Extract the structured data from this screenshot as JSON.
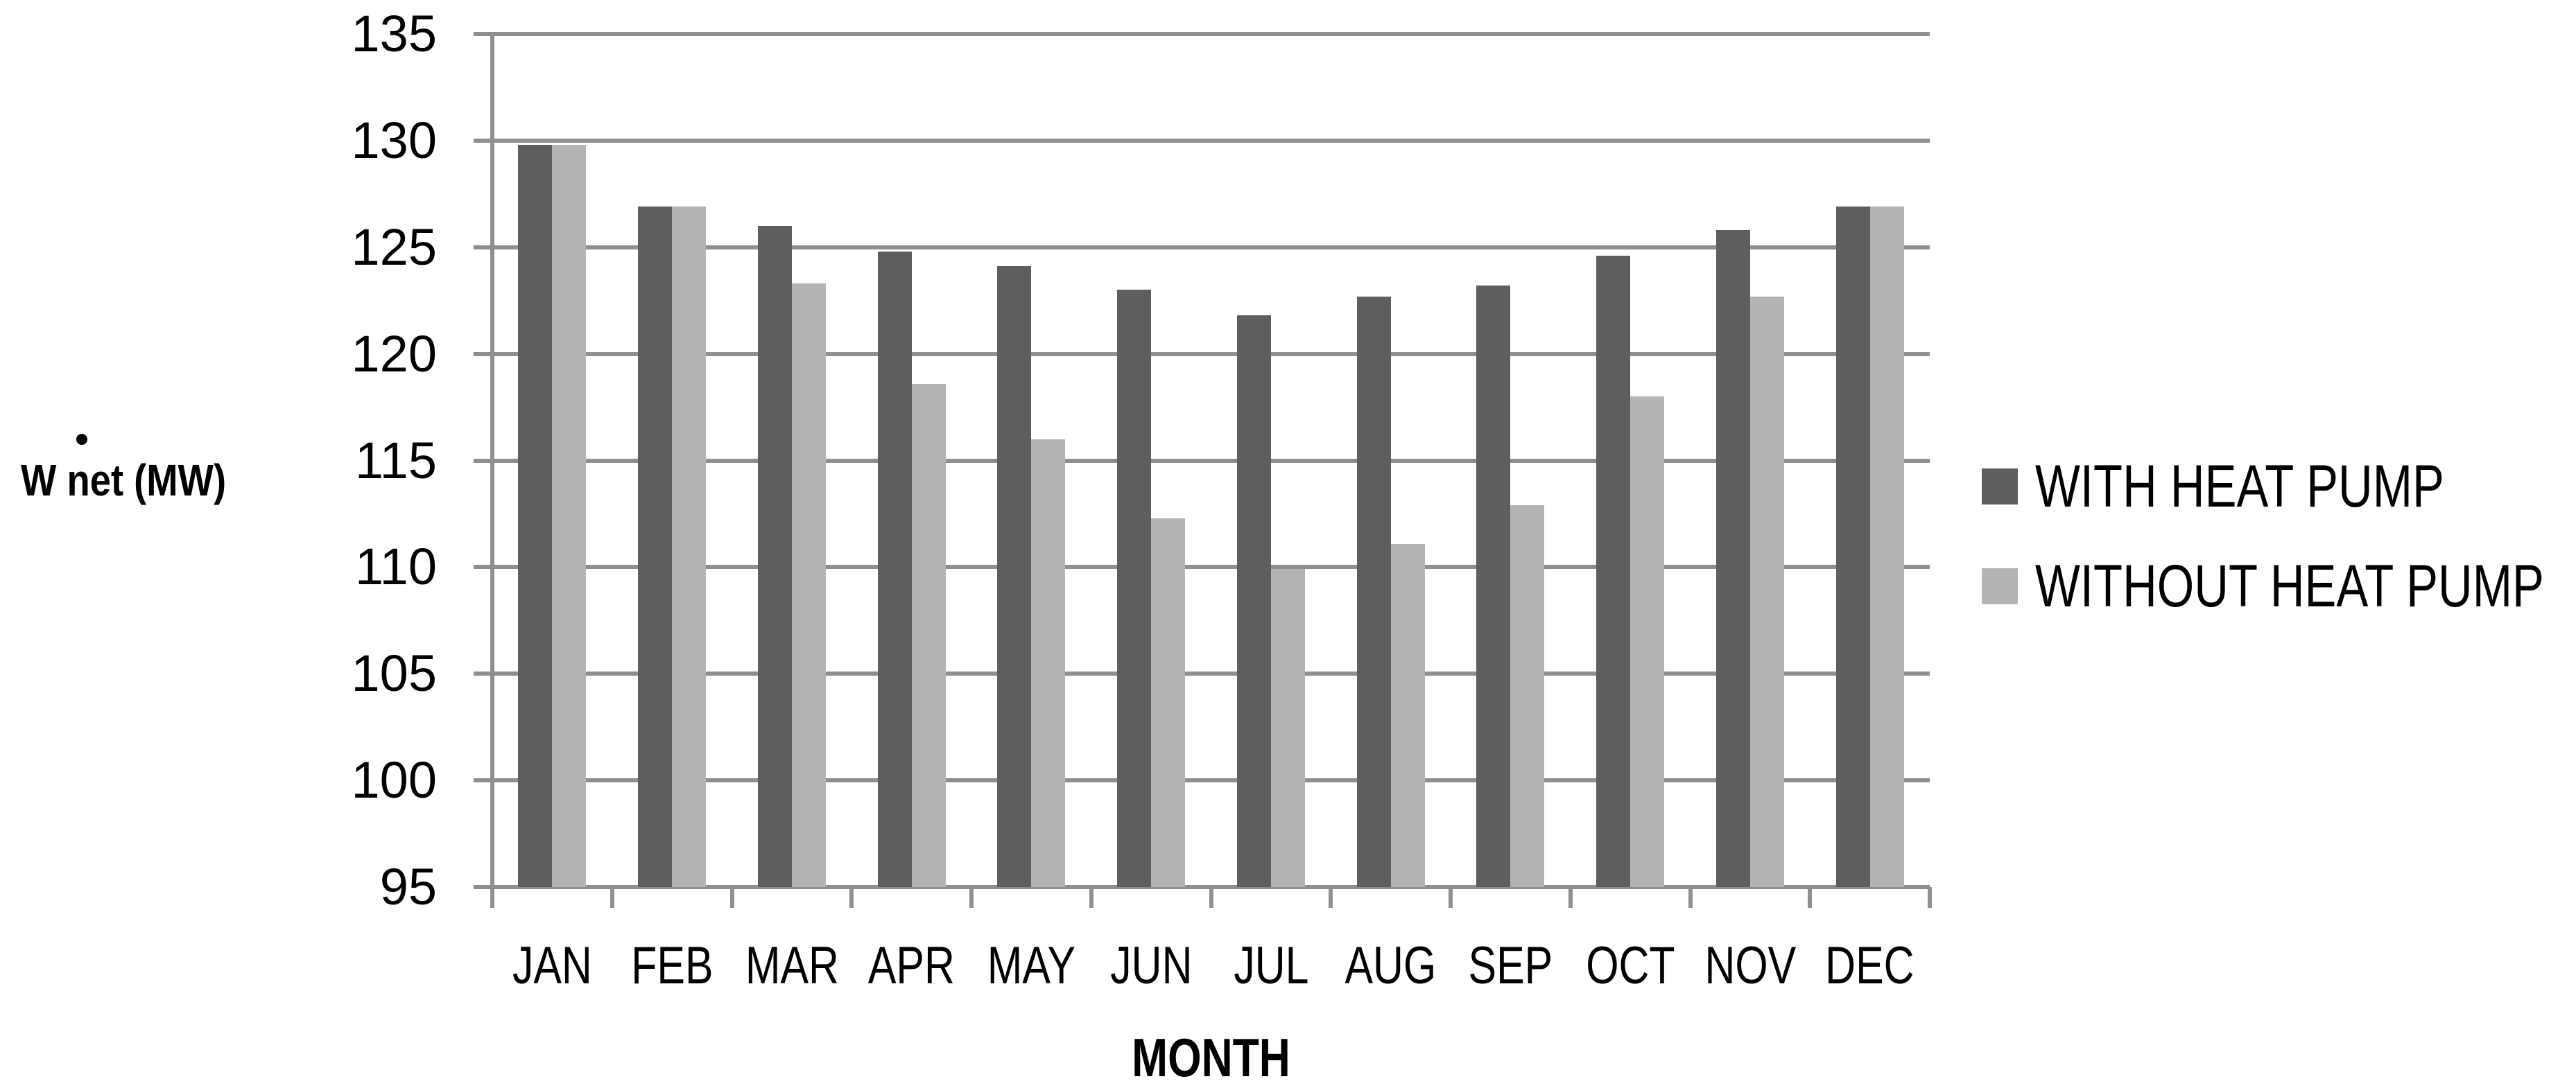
{
  "chart_data": {
    "type": "bar",
    "categories": [
      "JAN",
      "FEB",
      "MAR",
      "APR",
      "MAY",
      "JUN",
      "JUL",
      "AUG",
      "SEP",
      "OCT",
      "NOV",
      "DEC"
    ],
    "series": [
      {
        "name": "WITH HEAT PUMP",
        "color": "#5e5e5e",
        "values": [
          129.8,
          126.9,
          126.0,
          124.8,
          124.1,
          123.0,
          121.8,
          122.7,
          123.2,
          124.6,
          125.8,
          126.9
        ]
      },
      {
        "name": "WITHOUT HEAT PUMP",
        "color": "#b4b4b4",
        "values": [
          129.8,
          126.9,
          123.3,
          118.6,
          116.0,
          112.3,
          109.9,
          111.1,
          112.9,
          118.0,
          122.7,
          126.9
        ]
      }
    ],
    "xlabel": "MONTH",
    "ylabel": "Ẇ net (MW)",
    "ylabel_base": "W net (MW)",
    "ylim": [
      95,
      135
    ],
    "yticks": [
      135,
      130,
      125,
      120,
      115,
      110,
      105,
      100,
      95
    ],
    "grid": true,
    "legend_position": "right",
    "gridline_color": "#8f8f8f",
    "background_color": "#ffffff",
    "text_color": "#000000"
  }
}
